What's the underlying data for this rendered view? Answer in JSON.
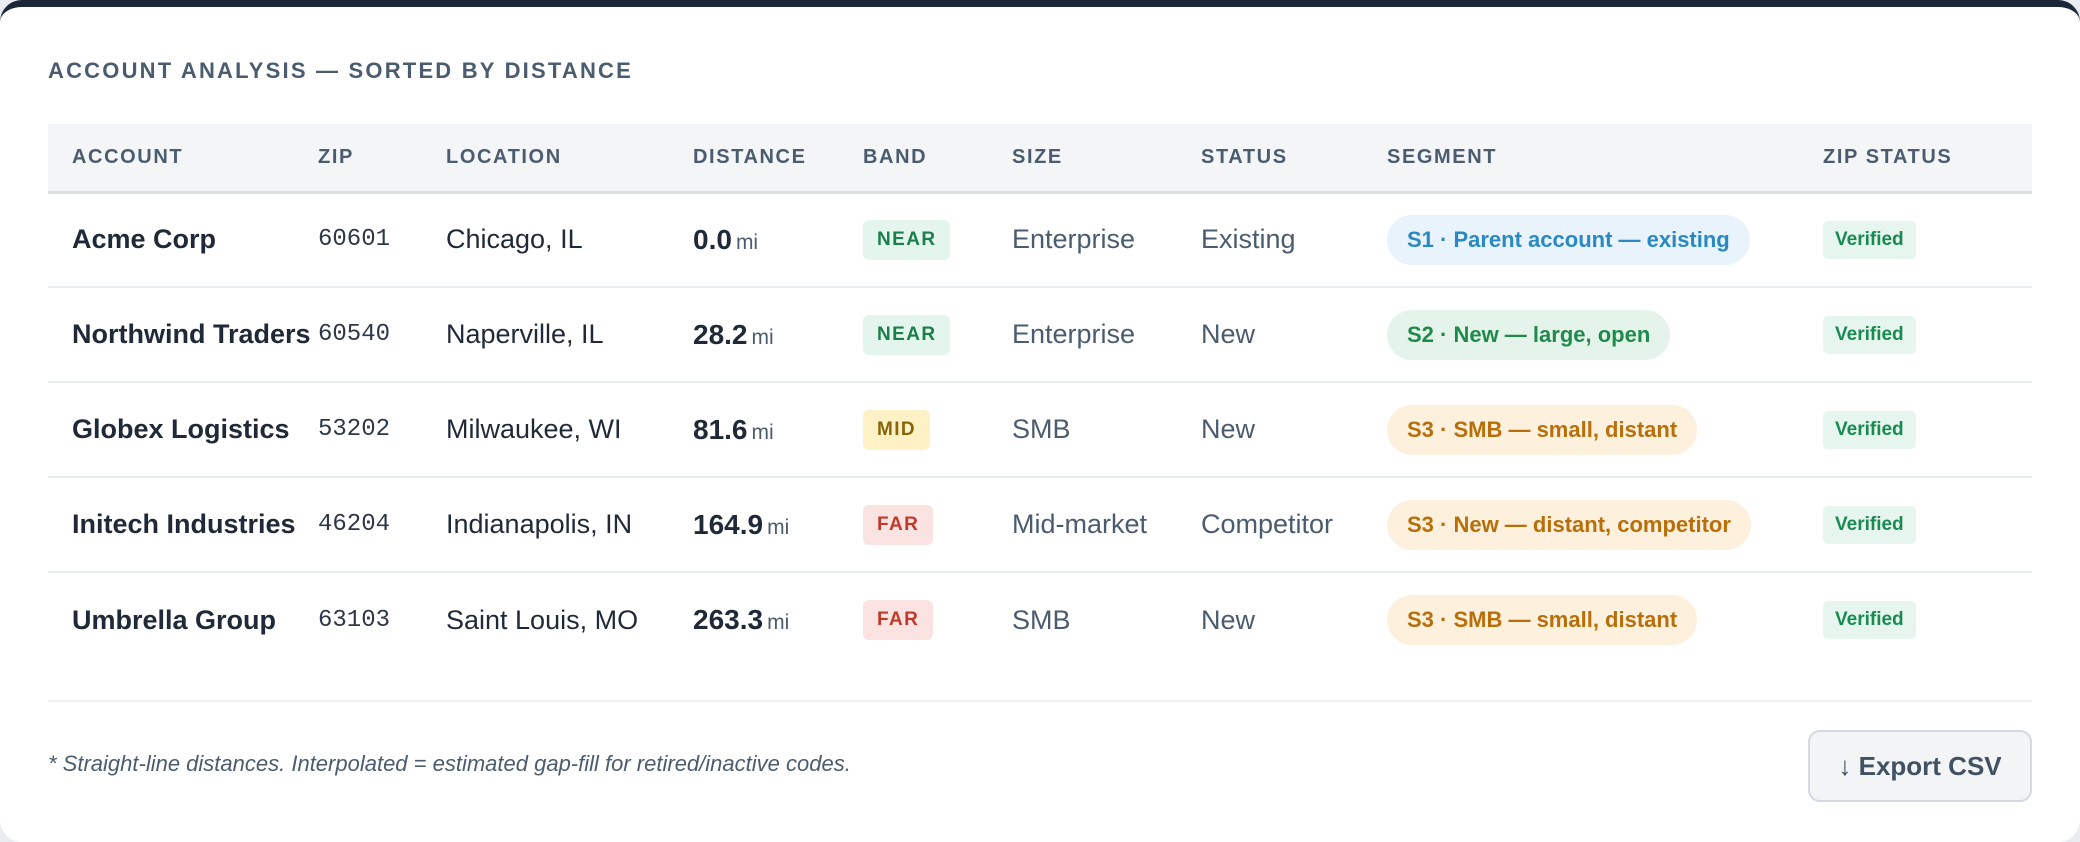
{
  "panel": {
    "title": "ACCOUNT ANALYSIS — SORTED BY DISTANCE"
  },
  "table": {
    "columns": [
      "ACCOUNT",
      "ZIP",
      "LOCATION",
      "DISTANCE",
      "BAND",
      "SIZE",
      "STATUS",
      "SEGMENT",
      "ZIP STATUS"
    ],
    "rows": [
      {
        "account": "Acme Corp",
        "zip": "60601",
        "location": "Chicago, IL",
        "distance": "0.0",
        "unit": "mi",
        "band": "NEAR",
        "size": "Enterprise",
        "status": "Existing",
        "segment": "S1 · Parent account — existing",
        "zip_status": "Verified"
      },
      {
        "account": "Northwind Traders",
        "zip": "60540",
        "location": "Naperville, IL",
        "distance": "28.2",
        "unit": "mi",
        "band": "NEAR",
        "size": "Enterprise",
        "status": "New",
        "segment": "S2 · New — large, open",
        "zip_status": "Verified"
      },
      {
        "account": "Globex Logistics",
        "zip": "53202",
        "location": "Milwaukee, WI",
        "distance": "81.6",
        "unit": "mi",
        "band": "MID",
        "size": "SMB",
        "status": "New",
        "segment": "S3 · SMB — small, distant",
        "zip_status": "Verified"
      },
      {
        "account": "Initech Industries",
        "zip": "46204",
        "location": "Indianapolis, IN",
        "distance": "164.9",
        "unit": "mi",
        "band": "FAR",
        "size": "Mid-market",
        "status": "Competitor",
        "segment": "S3 · New — distant, competitor",
        "zip_status": "Verified"
      },
      {
        "account": "Umbrella Group",
        "zip": "63103",
        "location": "Saint Louis, MO",
        "distance": "263.3",
        "unit": "mi",
        "band": "FAR",
        "size": "SMB",
        "status": "New",
        "segment": "S3 · SMB — small, distant",
        "zip_status": "Verified"
      }
    ]
  },
  "footer": {
    "note": "* Straight-line distances. Interpolated = estimated gap-fill for retired/inactive codes.",
    "export_label": "↓ Export CSV"
  },
  "colors": {
    "header_bar": "#1c2838",
    "band_near": "#1a7f4b",
    "band_mid": "#8a6508",
    "band_far": "#c0392b",
    "segment_s1": "#2a89c2",
    "segment_s2": "#1f8a4c",
    "segment_s3": "#b86f0a",
    "verified": "#1a8a52"
  }
}
